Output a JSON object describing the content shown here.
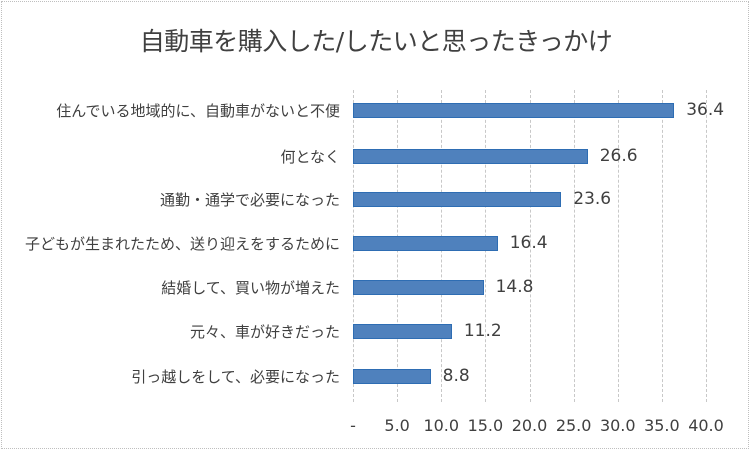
{
  "chart_data": {
    "type": "bar",
    "orientation": "horizontal",
    "title": "自動車を購入した/したいと思ったきっかけ",
    "categories": [
      "住んでいる地域的に、自動車がないと不便",
      "何となく",
      "通勤・通学で必要になった",
      "子どもが生まれたため、送り迎えをするために",
      "結婚して、買い物が増えた",
      "元々、車が好きだった",
      "引っ越しをして、必要になった"
    ],
    "values": [
      36.4,
      26.6,
      23.6,
      16.4,
      14.8,
      11.2,
      8.8
    ],
    "value_labels": [
      "36.4",
      "26.6",
      "23.6",
      "16.4",
      "14.8",
      "11.2",
      "8.8"
    ],
    "xlabel": "",
    "ylabel": "",
    "xlim": [
      0,
      40
    ],
    "x_ticks": [
      "-",
      "5.0",
      "10.0",
      "15.0",
      "20.0",
      "25.0",
      "30.0",
      "35.0",
      "40.0"
    ],
    "grid": true,
    "legend": "none",
    "bar_color": "#4f81bd"
  }
}
